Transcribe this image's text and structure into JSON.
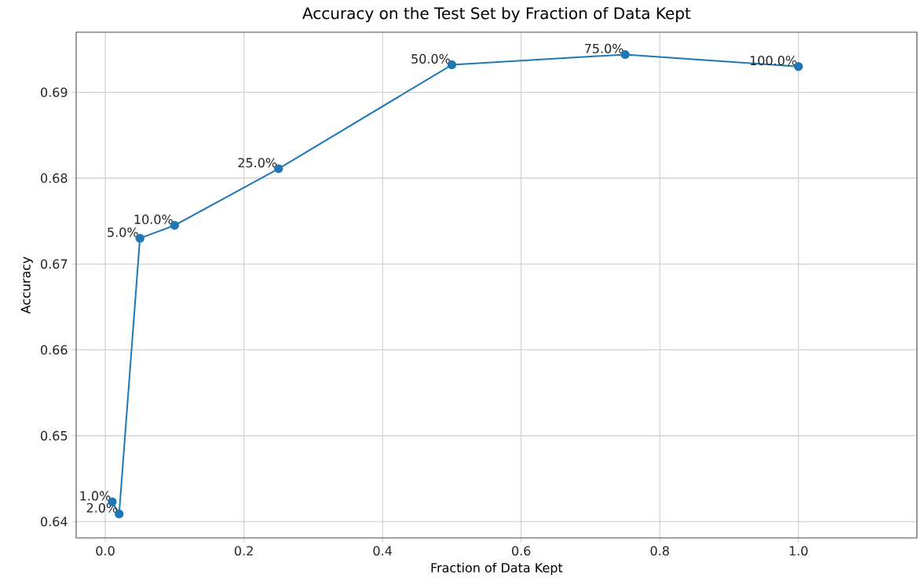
{
  "chart_data": {
    "type": "line",
    "title": "Accuracy on the Test Set by Fraction of Data Kept",
    "xlabel": "Fraction of Data Kept",
    "ylabel": "Accuracy",
    "x": [
      0.01,
      0.02,
      0.05,
      0.1,
      0.25,
      0.5,
      0.75,
      1.0
    ],
    "series": [
      {
        "color": "#1f77b4",
        "values": [
          0.6423,
          0.6409,
          0.673,
          0.6745,
          0.6811,
          0.6932,
          0.6944,
          0.693
        ]
      }
    ],
    "annotations": [
      {
        "text": "1.0%",
        "x": 0.01,
        "y": 0.6423
      },
      {
        "text": "2.0%",
        "x": 0.02,
        "y": 0.6409
      },
      {
        "text": "5.0%",
        "x": 0.05,
        "y": 0.673
      },
      {
        "text": "10.0%",
        "x": 0.1,
        "y": 0.6745
      },
      {
        "text": "25.0%",
        "x": 0.25,
        "y": 0.6811
      },
      {
        "text": "50.0%",
        "x": 0.5,
        "y": 0.6932
      },
      {
        "text": "75.0%",
        "x": 0.75,
        "y": 0.6944
      },
      {
        "text": "100.0%",
        "x": 1.0,
        "y": 0.693
      }
    ],
    "xlim": [
      -0.042,
      1.171
    ],
    "ylim": [
      0.6381,
      0.697
    ],
    "xticks": [
      {
        "value": 0.0,
        "label": "0.0"
      },
      0.2,
      0.4,
      0.6,
      0.8,
      {
        "value": 1.0,
        "label": "1.0"
      }
    ],
    "yticks": [
      0.64,
      0.65,
      0.66,
      0.67,
      0.68,
      0.69
    ],
    "grid": true,
    "marker": "circle",
    "line_style": "solid"
  }
}
